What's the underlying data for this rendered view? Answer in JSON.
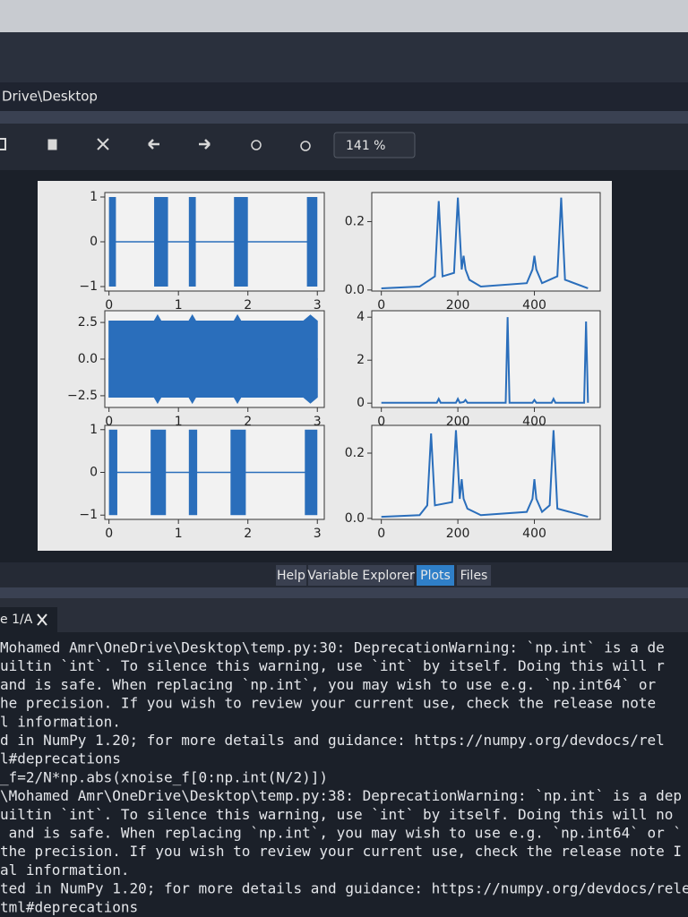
{
  "window": {
    "path": "Drive\\Desktop",
    "zoom": "141 %"
  },
  "tabs": [
    "Help",
    "Variable Explorer",
    "Plots",
    "Files"
  ],
  "active_tab_index": 2,
  "console": {
    "tab": "e 1/A",
    "lines": [
      "Mohamed Amr\\OneDrive\\Desktop\\temp.py:30: DeprecationWarning: `np.int` is a de",
      "uiltin `int`. To silence this warning, use `int` by itself. Doing this will r",
      "and is safe. When replacing `np.int`, you may wish to use e.g. `np.int64` or",
      "he precision. If you wish to review your current use, check the release note",
      "l information.",
      "d in NumPy 1.20; for more details and guidance: https://numpy.org/devdocs/rel",
      "l#deprecations",
      "_f=2/N*np.abs(xnoise_f[0:np.int(N/2)])",
      "\\Mohamed Amr\\OneDrive\\Desktop\\temp.py:38: DeprecationWarning: `np.int` is a dep",
      "uiltin `int`. To silence this warning, use `int` by itself. Doing this will no",
      " and is safe. When replacing `np.int`, you may wish to use e.g. `np.int64` or `",
      "the precision. If you wish to review your current use, check the release note I",
      "al information.",
      "ted in NumPy 1.20; for more details and guidance: https://numpy.org/devdocs/rele",
      "tml#deprecations"
    ]
  },
  "chart_data": [
    {
      "type": "burst",
      "color": "#2a6ebb",
      "xlim": [
        -0.06,
        3.1
      ],
      "ylim": [
        -1.1,
        1.1
      ],
      "xticks": [
        0,
        1,
        2,
        3
      ],
      "yticks": [
        1,
        0,
        {
          "value": -1,
          "label": "−1"
        }
      ],
      "bursts": [
        {
          "start": 0,
          "end": 0.1,
          "amplitude": 1
        },
        {
          "start": 0.65,
          "end": 0.85,
          "amplitude": 1
        },
        {
          "start": 1.15,
          "end": 1.25,
          "amplitude": 1
        },
        {
          "start": 1.8,
          "end": 2.0,
          "amplitude": 1
        },
        {
          "start": 2.85,
          "end": 3.0,
          "amplitude": 1
        }
      ]
    },
    {
      "type": "line",
      "color": "#2a6ebb",
      "xlim": [
        -25,
        572
      ],
      "ylim": [
        -0.003,
        0.285
      ],
      "xticks": [
        0,
        200,
        400
      ],
      "yticks": [
        0.2,
        {
          "value": 0,
          "label": "0.0"
        }
      ],
      "x": [
        0,
        100,
        140,
        150,
        160,
        190,
        200,
        210,
        215,
        220,
        230,
        260,
        380,
        395,
        400,
        405,
        420,
        460,
        470,
        480,
        540
      ],
      "values": [
        0.005,
        0.01,
        0.04,
        0.26,
        0.04,
        0.05,
        0.27,
        0.06,
        0.1,
        0.06,
        0.03,
        0.01,
        0.02,
        0.06,
        0.1,
        0.06,
        0.02,
        0.04,
        0.27,
        0.03,
        0.005
      ]
    },
    {
      "type": "envelope",
      "color": "#2a6ebb",
      "xlim": [
        -0.06,
        3.1
      ],
      "ylim": [
        -3.3,
        3.3
      ],
      "xticks": [
        0,
        1,
        2,
        3
      ],
      "yticks": [
        2.5,
        {
          "value": 0,
          "label": "0.0"
        },
        {
          "value": -2.5,
          "label": "−2.5"
        }
      ],
      "x": [
        0,
        0.65,
        0.7,
        0.75,
        1.15,
        1.2,
        1.25,
        1.8,
        1.85,
        1.9,
        2.8,
        2.9,
        3.0
      ],
      "values": [
        2.6,
        2.6,
        3.0,
        2.6,
        2.6,
        3.0,
        2.6,
        2.6,
        3.0,
        2.6,
        2.6,
        3.0,
        2.6
      ]
    },
    {
      "type": "line",
      "color": "#2a6ebb",
      "xlim": [
        -25,
        572
      ],
      "ylim": [
        -0.2,
        4.3
      ],
      "xticks": [
        0,
        200,
        400
      ],
      "yticks": [
        4,
        2,
        0
      ],
      "x": [
        0,
        145,
        150,
        155,
        195,
        200,
        205,
        215,
        220,
        225,
        325,
        330,
        335,
        395,
        400,
        405,
        445,
        450,
        455,
        530,
        535,
        540
      ],
      "values": [
        0.02,
        0.02,
        0.2,
        0.02,
        0.02,
        0.2,
        0.02,
        0.05,
        0.15,
        0.02,
        0.02,
        4.0,
        0.02,
        0.02,
        0.15,
        0.02,
        0.02,
        0.2,
        0.02,
        0.02,
        3.8,
        0.02
      ]
    },
    {
      "type": "burst",
      "color": "#2a6ebb",
      "xlim": [
        -0.06,
        3.1
      ],
      "ylim": [
        -1.1,
        1.1
      ],
      "xticks": [
        0,
        1,
        2,
        3
      ],
      "yticks": [
        1,
        0,
        {
          "value": -1,
          "label": "−1"
        }
      ],
      "bursts": [
        {
          "start": 0,
          "end": 0.12,
          "amplitude": 1
        },
        {
          "start": 0.6,
          "end": 0.82,
          "amplitude": 1
        },
        {
          "start": 1.15,
          "end": 1.27,
          "amplitude": 1
        },
        {
          "start": 1.75,
          "end": 1.97,
          "amplitude": 1
        },
        {
          "start": 2.82,
          "end": 3.0,
          "amplitude": 1
        }
      ]
    },
    {
      "type": "line",
      "color": "#2a6ebb",
      "xlim": [
        -25,
        572
      ],
      "ylim": [
        -0.003,
        0.285
      ],
      "xticks": [
        0,
        200,
        400
      ],
      "yticks": [
        0.2,
        {
          "value": 0,
          "label": "0.0"
        }
      ],
      "x": [
        0,
        100,
        120,
        130,
        140,
        185,
        195,
        205,
        210,
        215,
        225,
        260,
        380,
        395,
        400,
        405,
        420,
        440,
        450,
        460,
        540
      ],
      "values": [
        0.005,
        0.01,
        0.04,
        0.26,
        0.04,
        0.05,
        0.27,
        0.06,
        0.12,
        0.06,
        0.03,
        0.01,
        0.02,
        0.06,
        0.12,
        0.06,
        0.02,
        0.04,
        0.27,
        0.03,
        0.005
      ]
    }
  ]
}
